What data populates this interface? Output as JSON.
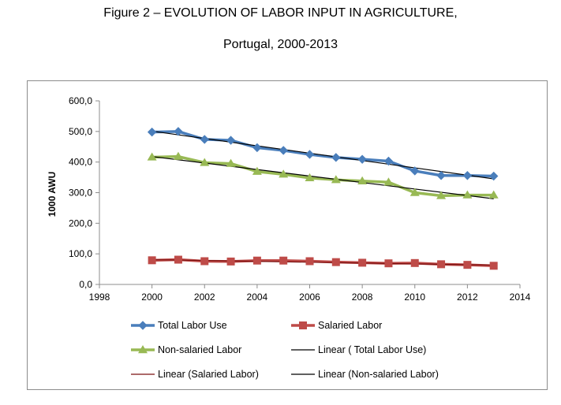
{
  "title": {
    "line1": "Figure 2 – EVOLUTION OF LABOR INPUT IN AGRICULTURE,",
    "line2": "Portugal, 2000-2013"
  },
  "chart_data": {
    "type": "line",
    "title": "Figure 2 – EVOLUTION OF LABOR INPUT IN AGRICULTURE, Portugal, 2000-2013",
    "xlabel": "",
    "ylabel": "1000 AWU",
    "xlim": [
      1998,
      2014
    ],
    "ylim": [
      0,
      600
    ],
    "x_ticks": [
      1998,
      2000,
      2002,
      2004,
      2006,
      2008,
      2010,
      2012,
      2014
    ],
    "y_ticks": [
      0,
      100,
      200,
      300,
      400,
      500,
      600
    ],
    "y_tick_labels": [
      "0,0",
      "100,0",
      "200,0",
      "300,0",
      "400,0",
      "500,0",
      "600,0"
    ],
    "grid": false,
    "legend_position": "bottom",
    "x": [
      2000,
      2001,
      2002,
      2003,
      2004,
      2005,
      2006,
      2007,
      2008,
      2009,
      2010,
      2011,
      2012,
      2013
    ],
    "series": [
      {
        "name": "Total  Labor Use",
        "marker": "diamond",
        "color": "#4a7ebb",
        "values": [
          498,
          500,
          474,
          471,
          447,
          438,
          425,
          415,
          409,
          403,
          371,
          356,
          356,
          354
        ]
      },
      {
        "name": "Salaried Labor",
        "marker": "square",
        "color": "#be4b48",
        "values": [
          79,
          81,
          76,
          75,
          78,
          78,
          76,
          73,
          71,
          69,
          70,
          66,
          64,
          61
        ]
      },
      {
        "name": "Non-salaried Labor",
        "marker": "triangle",
        "color": "#98b954",
        "values": [
          416,
          418,
          398,
          395,
          369,
          360,
          348,
          342,
          338,
          334,
          300,
          290,
          292,
          292
        ]
      }
    ],
    "trendlines": [
      {
        "name": "Linear ( Total  Labor Use)",
        "color": "#000000",
        "x": [
          2000,
          2013
        ],
        "values": [
          501,
          345
        ]
      },
      {
        "name": "Linear (Salaried Labor)",
        "color": "#7a1010",
        "x": [
          2000,
          2013
        ],
        "values": [
          81,
          63
        ]
      },
      {
        "name": "Linear (Non-salaried Labor)",
        "color": "#000000",
        "x": [
          2000,
          2013
        ],
        "values": [
          418,
          280
        ]
      }
    ],
    "legend": [
      "Total  Labor Use",
      "Salaried Labor",
      "Non-salaried Labor",
      "Linear ( Total  Labor Use)",
      "Linear (Salaried Labor)",
      "Linear (Non-salaried Labor)"
    ]
  }
}
